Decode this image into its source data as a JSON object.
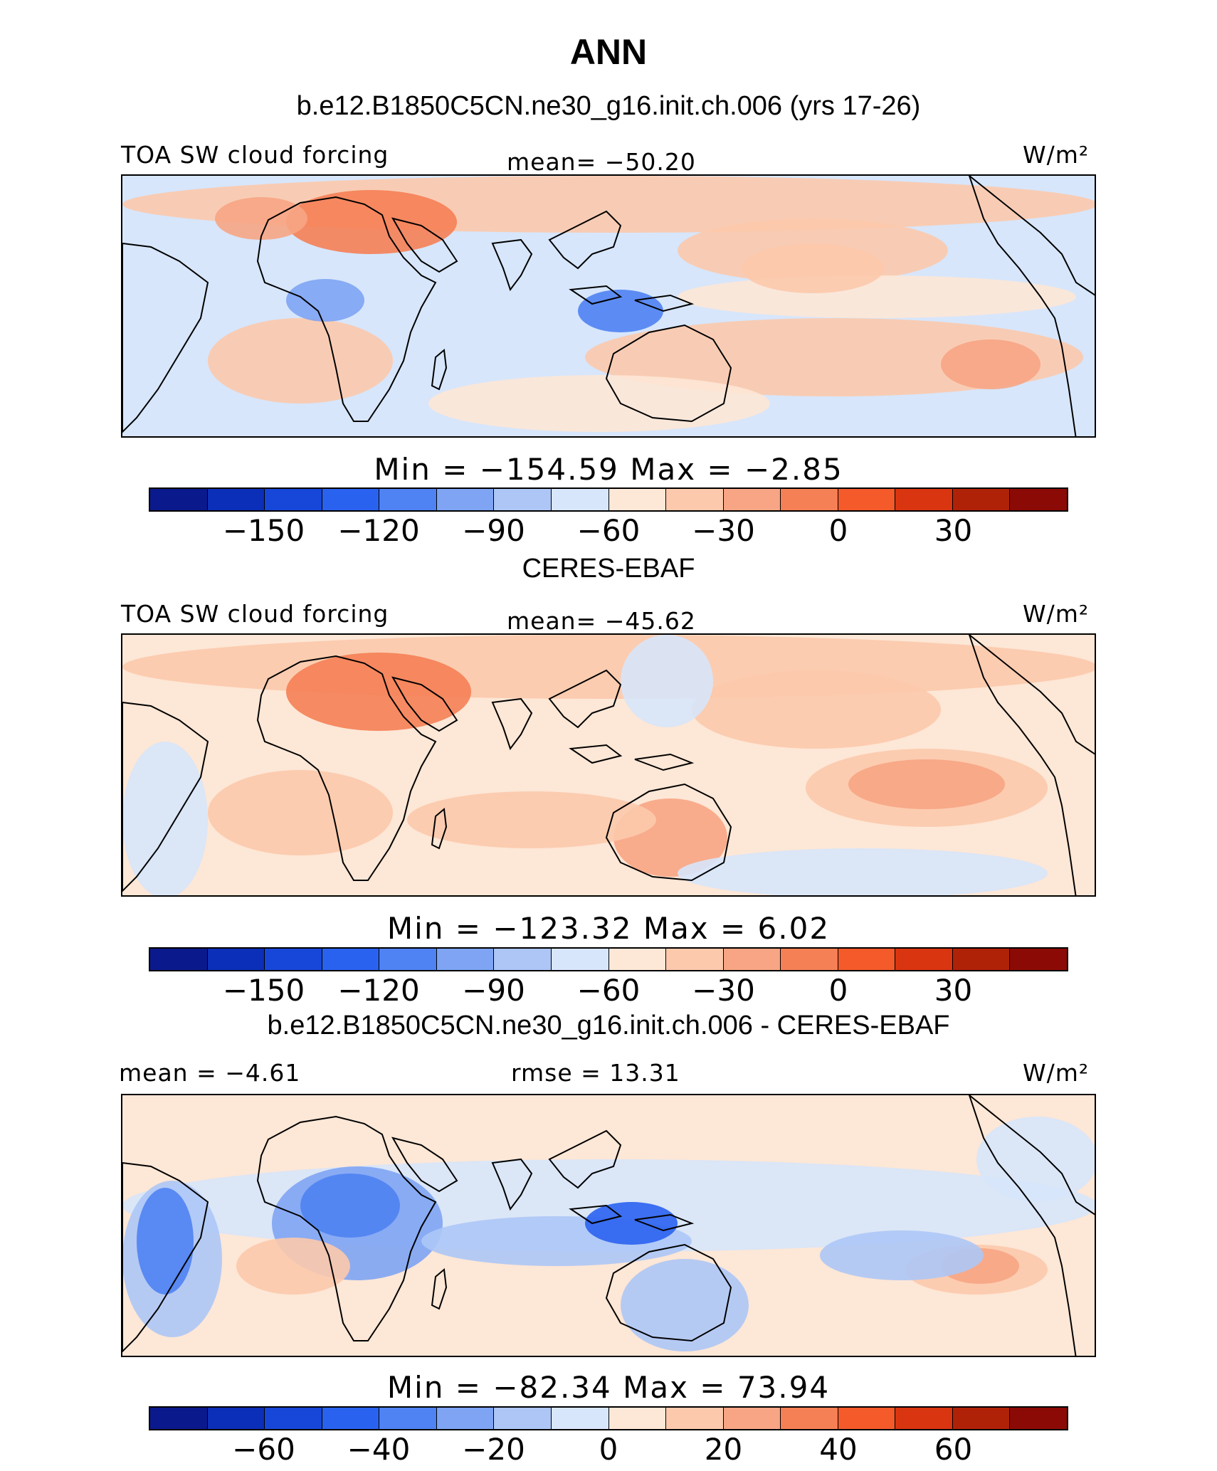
{
  "title": "ANN",
  "panels": [
    {
      "heading": "b.e12.B1850C5CN.ne30_g16.init.ch.006 (yrs 17-26)",
      "left_label": "TOA SW cloud forcing",
      "center_label": "mean= −50.20",
      "units": "W/m²",
      "minmax": "Min  =  −154.59  Max  =   −2.85",
      "colorbar_ticks": [
        "−150",
        "−120",
        "−90",
        "−60",
        "−30",
        "0",
        "30"
      ],
      "map_kind": "model"
    },
    {
      "heading": "CERES-EBAF",
      "left_label": "TOA SW cloud forcing",
      "center_label": "mean= −45.62",
      "units": "W/m²",
      "minmax": "Min  =  −123.32  Max  =     6.02",
      "colorbar_ticks": [
        "−150",
        "−120",
        "−90",
        "−60",
        "−30",
        "0",
        "30"
      ],
      "map_kind": "obs"
    },
    {
      "heading": "b.e12.B1850C5CN.ne30_g16.init.ch.006 - CERES-EBAF",
      "left_label": "mean =   −4.61",
      "center_label": "rmse =   13.31",
      "units": "W/m²",
      "minmax": "Min  =  −82.34  Max  =   73.94",
      "colorbar_ticks": [
        "−60",
        "−40",
        "−20",
        "0",
        "20",
        "40",
        "60"
      ],
      "map_kind": "diff"
    }
  ],
  "colorbar_colors": [
    "#0a1a8c",
    "#0b2fb8",
    "#1747d9",
    "#2a62f0",
    "#4f82f2",
    "#7ea4f3",
    "#adc6f6",
    "#d7e6fb",
    "#fde7d6",
    "#fcc9ac",
    "#f7a584",
    "#f58055",
    "#f45a2a",
    "#d93510",
    "#b02208",
    "#8c0a05"
  ],
  "colors": {
    "land_outline": "#000000",
    "border": "#000000"
  }
}
